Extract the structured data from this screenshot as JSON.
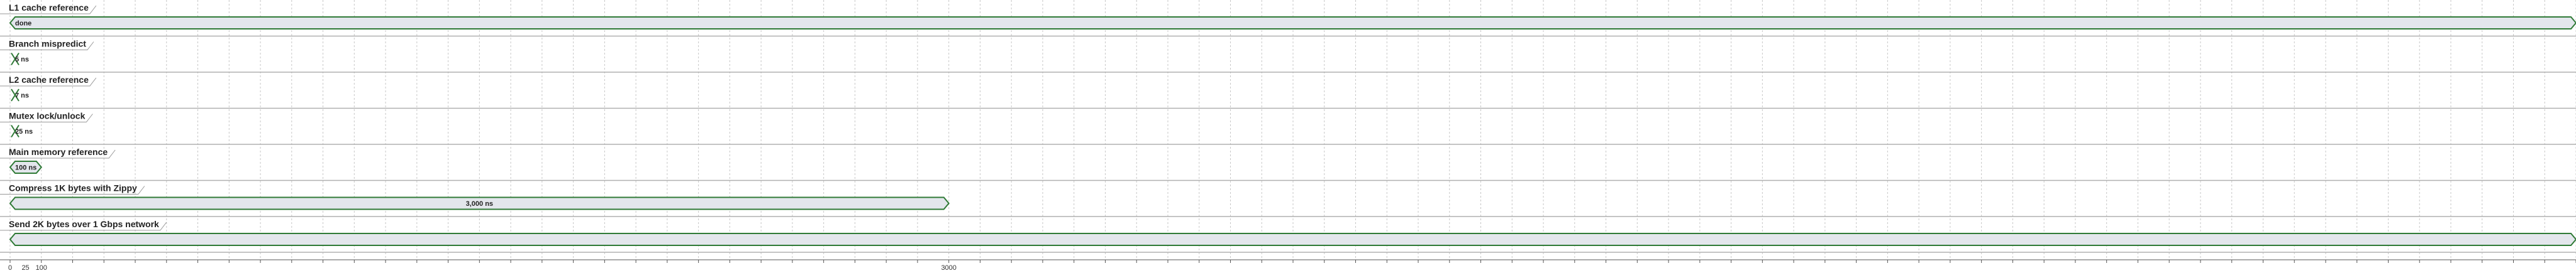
{
  "diagram": {
    "axis": {
      "min": 0,
      "max": 8200,
      "major_step": 100,
      "labeled_ticks": [
        {
          "value": 0,
          "text": "0"
        },
        {
          "value": 100,
          "text": "100"
        },
        {
          "value": 3000,
          "text": "3000"
        }
      ],
      "extra_labels": [
        {
          "value": 25,
          "text": "25"
        }
      ]
    },
    "colors": {
      "bar_fill": "#e3e6ec",
      "bar_stroke": "#2f7a36",
      "grid": "#c7c7c7",
      "divider": "#b0b0b0"
    },
    "lanes": [
      {
        "name": "L1 cache reference",
        "bars": [
          {
            "start": 0,
            "end": 8200,
            "label": "done"
          }
        ]
      },
      {
        "name": "Branch mispredict",
        "bars": [
          {
            "start": 0,
            "end": 5,
            "label": "5 ns"
          }
        ]
      },
      {
        "name": "L2 cache reference",
        "bars": [
          {
            "start": 0,
            "end": 7,
            "label": "7 ns"
          }
        ]
      },
      {
        "name": "Mutex lock/unlock",
        "bars": [
          {
            "start": 0,
            "end": 25,
            "label": "25 ns"
          }
        ]
      },
      {
        "name": "Main memory reference",
        "bars": [
          {
            "start": 0,
            "end": 100,
            "label": "100 ns"
          }
        ]
      },
      {
        "name": "Compress 1K bytes with Zippy",
        "bars": [
          {
            "start": 0,
            "end": 3000,
            "label": "3,000 ns"
          }
        ]
      },
      {
        "name": "Send 2K bytes over 1 Gbps network",
        "bars": [
          {
            "start": 0,
            "end": 8200,
            "label": ""
          }
        ]
      }
    ]
  }
}
